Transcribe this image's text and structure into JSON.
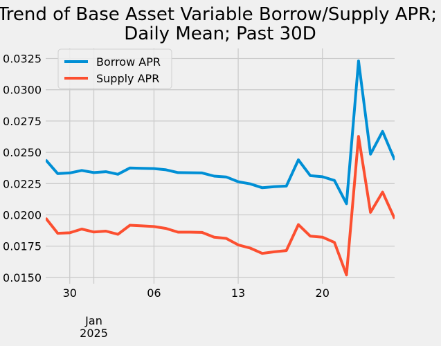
{
  "chart_data": {
    "type": "line",
    "title": "Trend of Base Asset Variable Borrow/Supply APR;\nDaily Mean; Past 30D",
    "xlabel": "",
    "ylabel": "",
    "x_day_offsets": [
      -3,
      -2,
      -1,
      0,
      1,
      2,
      3,
      4,
      5,
      6,
      7,
      8,
      9,
      10,
      11,
      12,
      13,
      14,
      15,
      16,
      17,
      18,
      19,
      20,
      21,
      22,
      23,
      24,
      25,
      26
    ],
    "xlim": [
      -3,
      26
    ],
    "ylim": [
      0.0145,
      0.0333
    ],
    "y_ticks": [
      0.015,
      0.0175,
      0.02,
      0.0225,
      0.025,
      0.0275,
      0.03,
      0.0325
    ],
    "y_tick_labels": [
      "0.0150",
      "0.0175",
      "0.0200",
      "0.0225",
      "0.0250",
      "0.0275",
      "0.0300",
      "0.0325"
    ],
    "x_ticks": [
      {
        "offset": -1,
        "label": "30"
      },
      {
        "offset": 6,
        "label": "06"
      },
      {
        "offset": 13,
        "label": "13"
      },
      {
        "offset": 20,
        "label": "20"
      }
    ],
    "x_major_tick": {
      "offset": 1,
      "label_line1": "Jan",
      "label_line2": "2025"
    },
    "legend_position": "upper-left",
    "series": [
      {
        "name": "Borrow APR",
        "color": "#008fd5",
        "values": [
          0.0244,
          0.0233,
          0.02335,
          0.02355,
          0.02338,
          0.02345,
          0.02325,
          0.02375,
          0.02372,
          0.0237,
          0.0236,
          0.02338,
          0.02337,
          0.02335,
          0.0231,
          0.02303,
          0.02265,
          0.02248,
          0.02217,
          0.02225,
          0.0223,
          0.0244,
          0.02313,
          0.02305,
          0.02275,
          0.0209,
          0.0323,
          0.02485,
          0.02667,
          0.0244
        ]
      },
      {
        "name": "Supply APR",
        "color": "#fc4f30",
        "values": [
          0.01975,
          0.01853,
          0.01857,
          0.01887,
          0.01863,
          0.0187,
          0.01845,
          0.01917,
          0.01912,
          0.01907,
          0.01892,
          0.01862,
          0.01862,
          0.0186,
          0.01822,
          0.01812,
          0.0176,
          0.01735,
          0.01692,
          0.01705,
          0.01715,
          0.01922,
          0.0183,
          0.01822,
          0.0178,
          0.0152,
          0.02627,
          0.0202,
          0.02182,
          0.0197
        ]
      }
    ]
  }
}
